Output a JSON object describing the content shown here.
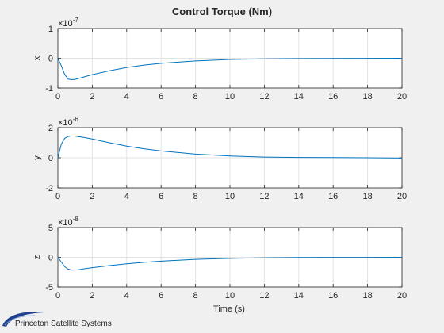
{
  "chart_data": {
    "type": "line",
    "title": "Control Torque (Nm)",
    "xlabel": "Time (s)",
    "xlim": [
      0,
      20
    ],
    "xticks": [
      "0",
      "2",
      "4",
      "6",
      "8",
      "10",
      "12",
      "14",
      "16",
      "18",
      "20"
    ],
    "grid": true,
    "line_color": "#0072bd",
    "subplots": [
      {
        "ylabel": "x",
        "exponent_label": "×10",
        "exponent": "-7",
        "ylim": [
          -1,
          1
        ],
        "yticks": [
          "-1",
          "0",
          "1"
        ],
        "x": [
          0,
          0.2,
          0.4,
          0.6,
          0.8,
          1.0,
          1.2,
          1.5,
          2,
          3,
          4,
          5,
          6,
          8,
          10,
          12,
          14,
          16,
          18,
          20
        ],
        "y": [
          0,
          -0.25,
          -0.55,
          -0.7,
          -0.72,
          -0.71,
          -0.68,
          -0.63,
          -0.55,
          -0.42,
          -0.31,
          -0.23,
          -0.17,
          -0.09,
          -0.04,
          -0.02,
          -0.01,
          -0.005,
          -0.002,
          0
        ]
      },
      {
        "ylabel": "y",
        "exponent_label": "×10",
        "exponent": "-6",
        "ylim": [
          -2,
          2
        ],
        "yticks": [
          "-2",
          "0",
          "2"
        ],
        "x": [
          0,
          0.2,
          0.4,
          0.6,
          0.8,
          1.0,
          1.2,
          1.5,
          2,
          3,
          4,
          5,
          6,
          8,
          10,
          12,
          14,
          16,
          18,
          20
        ],
        "y": [
          0,
          0.9,
          1.3,
          1.42,
          1.45,
          1.44,
          1.41,
          1.35,
          1.25,
          1.0,
          0.78,
          0.6,
          0.45,
          0.24,
          0.12,
          0.05,
          0.02,
          0.01,
          0,
          -0.02
        ]
      },
      {
        "ylabel": "z",
        "exponent_label": "×10",
        "exponent": "-8",
        "ylim": [
          -5,
          5
        ],
        "yticks": [
          "-5",
          "0",
          "5"
        ],
        "x": [
          0,
          0.2,
          0.4,
          0.6,
          0.8,
          1.0,
          1.2,
          1.5,
          2,
          3,
          4,
          5,
          6,
          8,
          10,
          12,
          14,
          16,
          18,
          20
        ],
        "y": [
          0,
          -0.8,
          -1.6,
          -2.0,
          -2.15,
          -2.15,
          -2.1,
          -1.95,
          -1.75,
          -1.4,
          -1.1,
          -0.85,
          -0.65,
          -0.35,
          -0.18,
          -0.08,
          -0.04,
          -0.02,
          -0.01,
          0
        ]
      }
    ]
  },
  "branding": {
    "logo_text": "Princeton Satellite Systems"
  }
}
